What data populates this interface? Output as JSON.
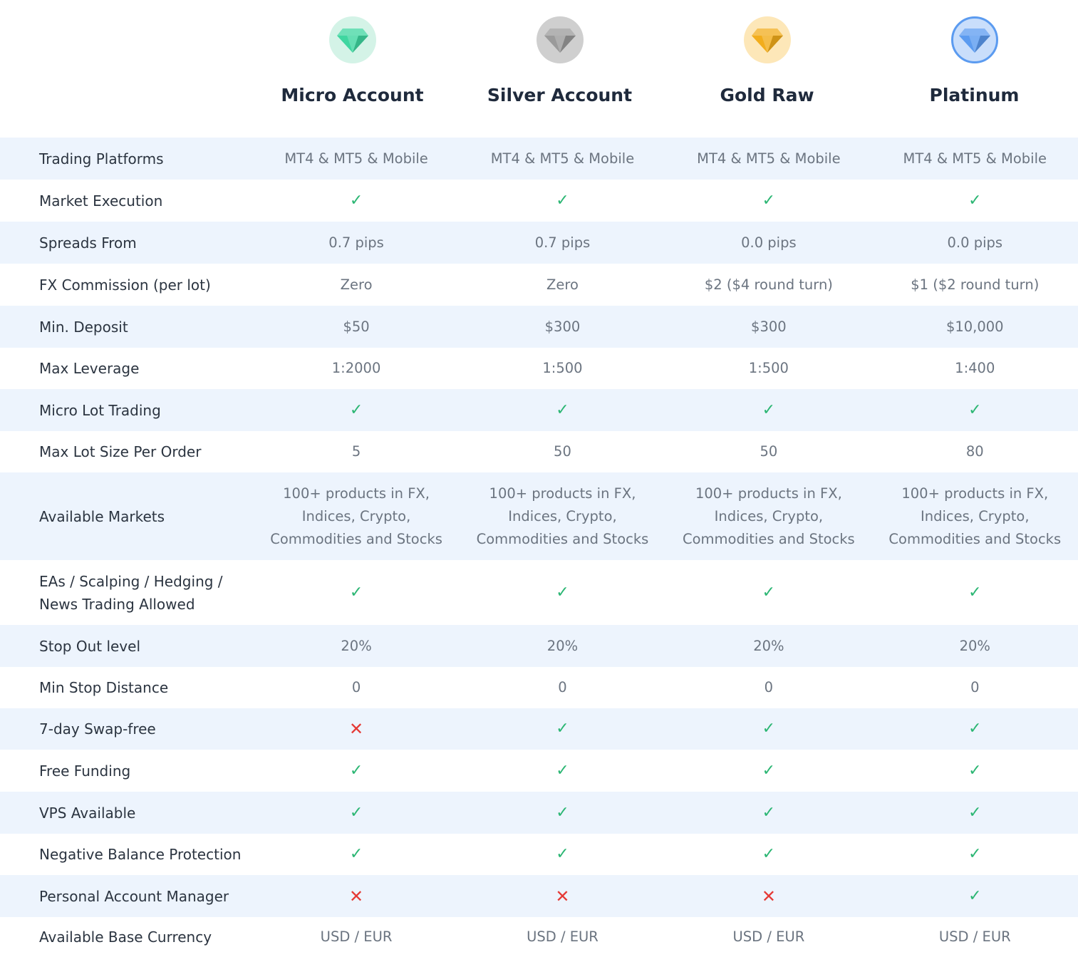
{
  "accounts": [
    {
      "name": "Micro Account",
      "icon": "diamond-green-icon",
      "color": "#3fd6a0",
      "bg": "#d4f3e7"
    },
    {
      "name": "Silver Account",
      "icon": "diamond-silver-icon",
      "color": "#9a9a9a",
      "bg": "#cfcfcf"
    },
    {
      "name": "Gold Raw",
      "icon": "diamond-gold-icon",
      "color": "#f2ad1c",
      "bg": "#fde7b8"
    },
    {
      "name": "Platinum",
      "icon": "diamond-blue-icon",
      "color": "#5b9bf0",
      "bg": "#c9defb"
    }
  ],
  "symbols": {
    "yes": "✓",
    "no": "✕"
  },
  "colors": {
    "yes": "#2bb673",
    "no": "#e53935",
    "row_alt": "#edf4fd"
  },
  "rows": [
    {
      "label": "Trading Platforms",
      "values": [
        "MT4 & MT5 & Mobile",
        "MT4 & MT5 & Mobile",
        "MT4 & MT5 & Mobile",
        "MT4 & MT5 & Mobile"
      ]
    },
    {
      "label": "Market Execution",
      "values": [
        "yes",
        "yes",
        "yes",
        "yes"
      ]
    },
    {
      "label": "Spreads From",
      "values": [
        "0.7 pips",
        "0.7 pips",
        "0.0 pips",
        "0.0 pips"
      ]
    },
    {
      "label": "FX Commission (per lot)",
      "values": [
        "Zero",
        "Zero",
        "$2 ($4 round turn)",
        "$1 ($2 round turn)"
      ]
    },
    {
      "label": "Min. Deposit",
      "values": [
        "$50",
        "$300",
        "$300",
        "$10,000"
      ]
    },
    {
      "label": "Max Leverage",
      "values": [
        "1:2000",
        "1:500",
        "1:500",
        "1:400"
      ]
    },
    {
      "label": "Micro Lot Trading",
      "values": [
        "yes",
        "yes",
        "yes",
        "yes"
      ]
    },
    {
      "label": "Max Lot Size Per Order",
      "values": [
        "5",
        "50",
        "50",
        "80"
      ]
    },
    {
      "label": "Available Markets",
      "values": [
        "100+ products in FX,\nIndices, Crypto,\nCommodities and Stocks",
        "100+ products in FX,\nIndices, Crypto,\nCommodities and Stocks",
        "100+ products in FX,\nIndices, Crypto,\nCommodities and Stocks",
        "100+ products in FX,\nIndices, Crypto,\nCommodities and Stocks"
      ]
    },
    {
      "label": "EAs / Scalping / Hedging /\nNews Trading Allowed",
      "values": [
        "yes",
        "yes",
        "yes",
        "yes"
      ]
    },
    {
      "label": "Stop Out level",
      "values": [
        "20%",
        "20%",
        "20%",
        "20%"
      ]
    },
    {
      "label": "Min Stop Distance",
      "values": [
        "0",
        "0",
        "0",
        "0"
      ]
    },
    {
      "label": "7-day Swap-free",
      "values": [
        "no",
        "yes",
        "yes",
        "yes"
      ]
    },
    {
      "label": "Free Funding",
      "values": [
        "yes",
        "yes",
        "yes",
        "yes"
      ]
    },
    {
      "label": "VPS Available",
      "values": [
        "yes",
        "yes",
        "yes",
        "yes"
      ]
    },
    {
      "label": "Negative Balance Protection",
      "values": [
        "yes",
        "yes",
        "yes",
        "yes"
      ]
    },
    {
      "label": "Personal Account Manager",
      "values": [
        "no",
        "no",
        "no",
        "yes"
      ]
    },
    {
      "label": "Available Base Currency",
      "values": [
        "USD / EUR",
        "USD / EUR",
        "USD / EUR",
        "USD / EUR"
      ]
    }
  ]
}
